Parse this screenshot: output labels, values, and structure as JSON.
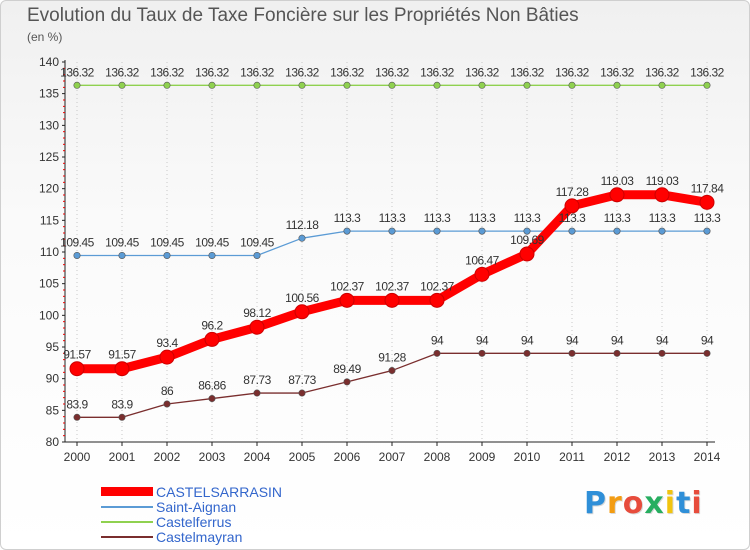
{
  "chart_data": {
    "type": "line",
    "title": "Evolution du Taux de Taxe Foncière sur les Propriétés Non Bâties",
    "ylabel": "(en %)",
    "xlabel": "",
    "x": [
      "2000",
      "2001",
      "2002",
      "2003",
      "2004",
      "2005",
      "2006",
      "2007",
      "2008",
      "2009",
      "2010",
      "2011",
      "2012",
      "2013",
      "2014"
    ],
    "ylim": [
      80,
      140
    ],
    "yticks": [
      80,
      85,
      90,
      95,
      100,
      105,
      110,
      115,
      120,
      125,
      130,
      135,
      140
    ],
    "grid": "dotted-vertical",
    "legend_position": "bottom-left",
    "series": [
      {
        "name": "CASTELSARRASIN",
        "color": "#ff0000",
        "values": [
          91.57,
          91.57,
          93.4,
          96.2,
          98.12,
          100.56,
          102.37,
          102.37,
          102.37,
          106.47,
          109.69,
          117.28,
          119.03,
          119.03,
          117.84
        ],
        "labels": [
          "91.57",
          "91.57",
          "93.4",
          "96.2",
          "98.12",
          "100.56",
          "102.37",
          "102.37",
          "102.37",
          "106.47",
          "109.69",
          "117.28",
          "119.03",
          "119.03",
          "117.84"
        ]
      },
      {
        "name": "Saint-Aignan",
        "color": "#5b9bd5",
        "values": [
          109.45,
          109.45,
          109.45,
          109.45,
          109.45,
          112.18,
          113.3,
          113.3,
          113.3,
          113.3,
          113.3,
          113.3,
          113.3,
          113.3,
          113.3
        ],
        "labels": [
          "109.45",
          "109.45",
          "109.45",
          "109.45",
          "109.45",
          "112.18",
          "113.3",
          "113.3",
          "113.3",
          "113.3",
          "113.3",
          "113.3",
          "113.3",
          "113.3",
          "113.3"
        ]
      },
      {
        "name": "Castelferrus",
        "color": "#8fd14f",
        "values": [
          136.32,
          136.32,
          136.32,
          136.32,
          136.32,
          136.32,
          136.32,
          136.32,
          136.32,
          136.32,
          136.32,
          136.32,
          136.32,
          136.32,
          136.32
        ],
        "labels": [
          "136.32",
          "136.32",
          "136.32",
          "136.32",
          "136.32",
          "136.32",
          "136.32",
          "136.32",
          "136.32",
          "136.32",
          "136.32",
          "136.32",
          "136.32",
          "136.32",
          "136.32"
        ]
      },
      {
        "name": "Castelmayran",
        "color": "#7a2e2e",
        "values": [
          83.9,
          83.9,
          86,
          86.86,
          87.73,
          87.73,
          89.49,
          91.28,
          94,
          94,
          94,
          94,
          94,
          94,
          94
        ],
        "labels": [
          "83.9",
          "83.9",
          "86",
          "86.86",
          "87.73",
          "87.73",
          "89.49",
          "91.28",
          "94",
          "94",
          "94",
          "94",
          "94",
          "94",
          "94"
        ]
      }
    ]
  },
  "legend": {
    "items": [
      {
        "name": "CASTELSARRASIN",
        "color": "#ff0000"
      },
      {
        "name": "Saint-Aignan",
        "color": "#5b9bd5"
      },
      {
        "name": "Castelferrus",
        "color": "#8fd14f"
      },
      {
        "name": "Castelmayran",
        "color": "#7a2e2e"
      }
    ]
  },
  "logo": {
    "letters": [
      {
        "ch": "P",
        "color": "#2f8fd8"
      },
      {
        "ch": "r",
        "color": "#f39c12"
      },
      {
        "ch": "o",
        "color": "#e74c3c"
      },
      {
        "ch": "x",
        "color": "#27ae60"
      },
      {
        "ch": "i",
        "color": "#f1c40f"
      },
      {
        "ch": "t",
        "color": "#2f8fd8"
      },
      {
        "ch": "i",
        "color": "#e74c3c"
      }
    ]
  }
}
